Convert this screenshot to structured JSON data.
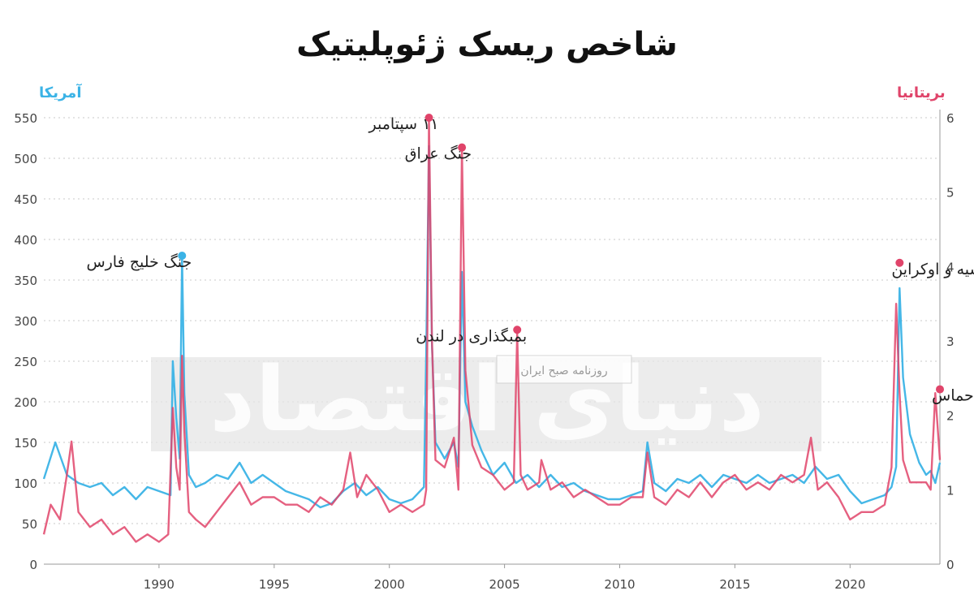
{
  "chart_data": {
    "type": "line",
    "title": "شاخص ریسک ژئوپلیتیک",
    "left_axis": {
      "label": "آمریکا",
      "ylim": [
        0,
        550
      ],
      "ticks": [
        0,
        50,
        100,
        150,
        200,
        250,
        300,
        350,
        400,
        450,
        500,
        550
      ],
      "color": "#3bb3e6"
    },
    "right_axis": {
      "label": "بریتانیا",
      "ylim": [
        0,
        6
      ],
      "ticks": [
        0,
        1,
        2,
        3,
        4,
        5,
        6
      ],
      "color": "#e0446a"
    },
    "x_ticks": [
      1990,
      1995,
      2000,
      2005,
      2010,
      2015,
      2020
    ],
    "xlim": [
      1985.0,
      2023.9
    ],
    "grid": true,
    "series": [
      {
        "name": "آمریکا",
        "axis": "left",
        "color": "#3bb3e6",
        "x": [
          1985.0,
          1985.5,
          1986.0,
          1986.5,
          1987.0,
          1987.5,
          1988.0,
          1988.5,
          1989.0,
          1989.5,
          1990.0,
          1990.5,
          1990.6,
          1990.75,
          1990.9,
          1991.0,
          1991.1,
          1991.3,
          1991.6,
          1992.0,
          1992.5,
          1993.0,
          1993.5,
          1994.0,
          1994.5,
          1995.0,
          1995.5,
          1996.0,
          1996.5,
          1997.0,
          1997.5,
          1998.0,
          1998.5,
          1999.0,
          1999.5,
          2000.0,
          2000.5,
          2001.0,
          2001.5,
          2001.6,
          2001.72,
          2001.85,
          2002.0,
          2002.4,
          2002.8,
          2003.0,
          2003.15,
          2003.3,
          2003.6,
          2004.0,
          2004.5,
          2005.0,
          2005.5,
          2006.0,
          2006.5,
          2007.0,
          2007.5,
          2008.0,
          2008.5,
          2009.0,
          2009.5,
          2010.0,
          2010.5,
          2011.0,
          2011.2,
          2011.5,
          2012.0,
          2012.5,
          2013.0,
          2013.5,
          2014.0,
          2014.5,
          2015.0,
          2015.5,
          2016.0,
          2016.5,
          2017.0,
          2017.5,
          2018.0,
          2018.5,
          2019.0,
          2019.5,
          2020.0,
          2020.5,
          2021.0,
          2021.5,
          2021.8,
          2022.0,
          2022.15,
          2022.3,
          2022.6,
          2023.0,
          2023.3,
          2023.5,
          2023.7,
          2023.9
        ],
        "y": [
          105,
          150,
          110,
          100,
          95,
          100,
          85,
          95,
          80,
          95,
          90,
          85,
          250,
          180,
          130,
          380,
          210,
          110,
          95,
          100,
          110,
          105,
          125,
          100,
          110,
          100,
          90,
          85,
          80,
          70,
          75,
          90,
          100,
          85,
          95,
          80,
          75,
          80,
          95,
          260,
          515,
          270,
          150,
          130,
          150,
          120,
          360,
          200,
          170,
          140,
          110,
          125,
          100,
          110,
          95,
          110,
          95,
          100,
          90,
          85,
          80,
          80,
          85,
          90,
          150,
          100,
          90,
          105,
          100,
          110,
          95,
          110,
          105,
          100,
          110,
          100,
          105,
          110,
          100,
          120,
          105,
          110,
          90,
          75,
          80,
          85,
          95,
          120,
          340,
          230,
          160,
          125,
          110,
          115,
          100,
          125
        ],
        "labels_only_for_reference": ""
      },
      {
        "name": "بریتانیا",
        "axis": "right",
        "color": "#e0446a",
        "x": [
          1985.0,
          1985.3,
          1985.7,
          1986.0,
          1986.2,
          1986.5,
          1987.0,
          1987.5,
          1988.0,
          1988.5,
          1989.0,
          1989.5,
          1990.0,
          1990.4,
          1990.6,
          1990.75,
          1990.9,
          1991.0,
          1991.1,
          1991.3,
          1991.6,
          1992.0,
          1992.5,
          1993.0,
          1993.5,
          1994.0,
          1994.5,
          1995.0,
          1995.5,
          1996.0,
          1996.5,
          1997.0,
          1997.5,
          1998.0,
          1998.3,
          1998.6,
          1999.0,
          1999.5,
          2000.0,
          2000.5,
          2001.0,
          2001.5,
          2001.6,
          2001.72,
          2001.85,
          2002.0,
          2002.4,
          2002.8,
          2003.0,
          2003.15,
          2003.3,
          2003.6,
          2004.0,
          2004.5,
          2005.0,
          2005.4,
          2005.55,
          2005.7,
          2006.0,
          2006.5,
          2006.6,
          2007.0,
          2007.5,
          2008.0,
          2008.5,
          2009.0,
          2009.5,
          2010.0,
          2010.5,
          2011.0,
          2011.2,
          2011.5,
          2012.0,
          2012.5,
          2013.0,
          2013.5,
          2014.0,
          2014.5,
          2015.0,
          2015.5,
          2016.0,
          2016.5,
          2017.0,
          2017.5,
          2018.0,
          2018.3,
          2018.6,
          2019.0,
          2019.5,
          2020.0,
          2020.5,
          2021.0,
          2021.5,
          2021.8,
          2022.0,
          2022.15,
          2022.3,
          2022.6,
          2023.0,
          2023.3,
          2023.5,
          2023.7,
          2023.9
        ],
        "y": [
          0.4,
          0.8,
          0.6,
          1.2,
          1.65,
          0.7,
          0.5,
          0.6,
          0.4,
          0.5,
          0.3,
          0.4,
          0.3,
          0.4,
          2.1,
          1.3,
          1.0,
          2.8,
          1.8,
          0.7,
          0.6,
          0.5,
          0.7,
          0.9,
          1.1,
          0.8,
          0.9,
          0.9,
          0.8,
          0.8,
          0.7,
          0.9,
          0.8,
          1.0,
          1.5,
          0.9,
          1.2,
          1.0,
          0.7,
          0.8,
          0.7,
          0.8,
          1.0,
          6.0,
          3.0,
          1.4,
          1.3,
          1.7,
          1.0,
          5.6,
          2.6,
          1.6,
          1.3,
          1.2,
          1.0,
          1.1,
          3.1,
          1.2,
          1.0,
          1.1,
          1.4,
          1.0,
          1.1,
          0.9,
          1.0,
          0.9,
          0.8,
          0.8,
          0.9,
          0.9,
          1.5,
          0.9,
          0.8,
          1.0,
          0.9,
          1.1,
          0.9,
          1.1,
          1.2,
          1.0,
          1.1,
          1.0,
          1.2,
          1.1,
          1.2,
          1.7,
          1.0,
          1.1,
          0.9,
          0.6,
          0.7,
          0.7,
          0.8,
          1.3,
          3.5,
          2.3,
          1.4,
          1.1,
          1.1,
          1.1,
          1.0,
          2.3,
          1.4
        ]
      }
    ],
    "annotations": [
      {
        "text": "جنگ خلیج فارس",
        "x": 1991.0,
        "y": 380,
        "axis": "left",
        "color": "#3bb3e6",
        "side": "right"
      },
      {
        "text": "۱۱ سپتامبر",
        "x": 2001.72,
        "y": 6.0,
        "axis": "right",
        "color": "#e0446a",
        "side": "right"
      },
      {
        "text": "جنگ عراق",
        "x": 2003.15,
        "y": 5.6,
        "axis": "right",
        "color": "#e0446a",
        "side": "right"
      },
      {
        "text": "بمبگذاری در لندن",
        "x": 2005.55,
        "y": 3.15,
        "axis": "right",
        "color": "#e0446a",
        "side": "right"
      },
      {
        "text": "جنگ روسیه و اوکراین",
        "x": 2022.15,
        "y": 4.05,
        "axis": "right",
        "color": "#e0446a",
        "side": "left"
      },
      {
        "text": "جنگ اسرائیل و حماس",
        "x": 2023.9,
        "y": 2.35,
        "axis": "right",
        "color": "#e0446a",
        "side": "left"
      }
    ]
  },
  "watermark": {
    "main": "دنیای اقتصاد",
    "sub": "روزنامه صبح ایران"
  }
}
